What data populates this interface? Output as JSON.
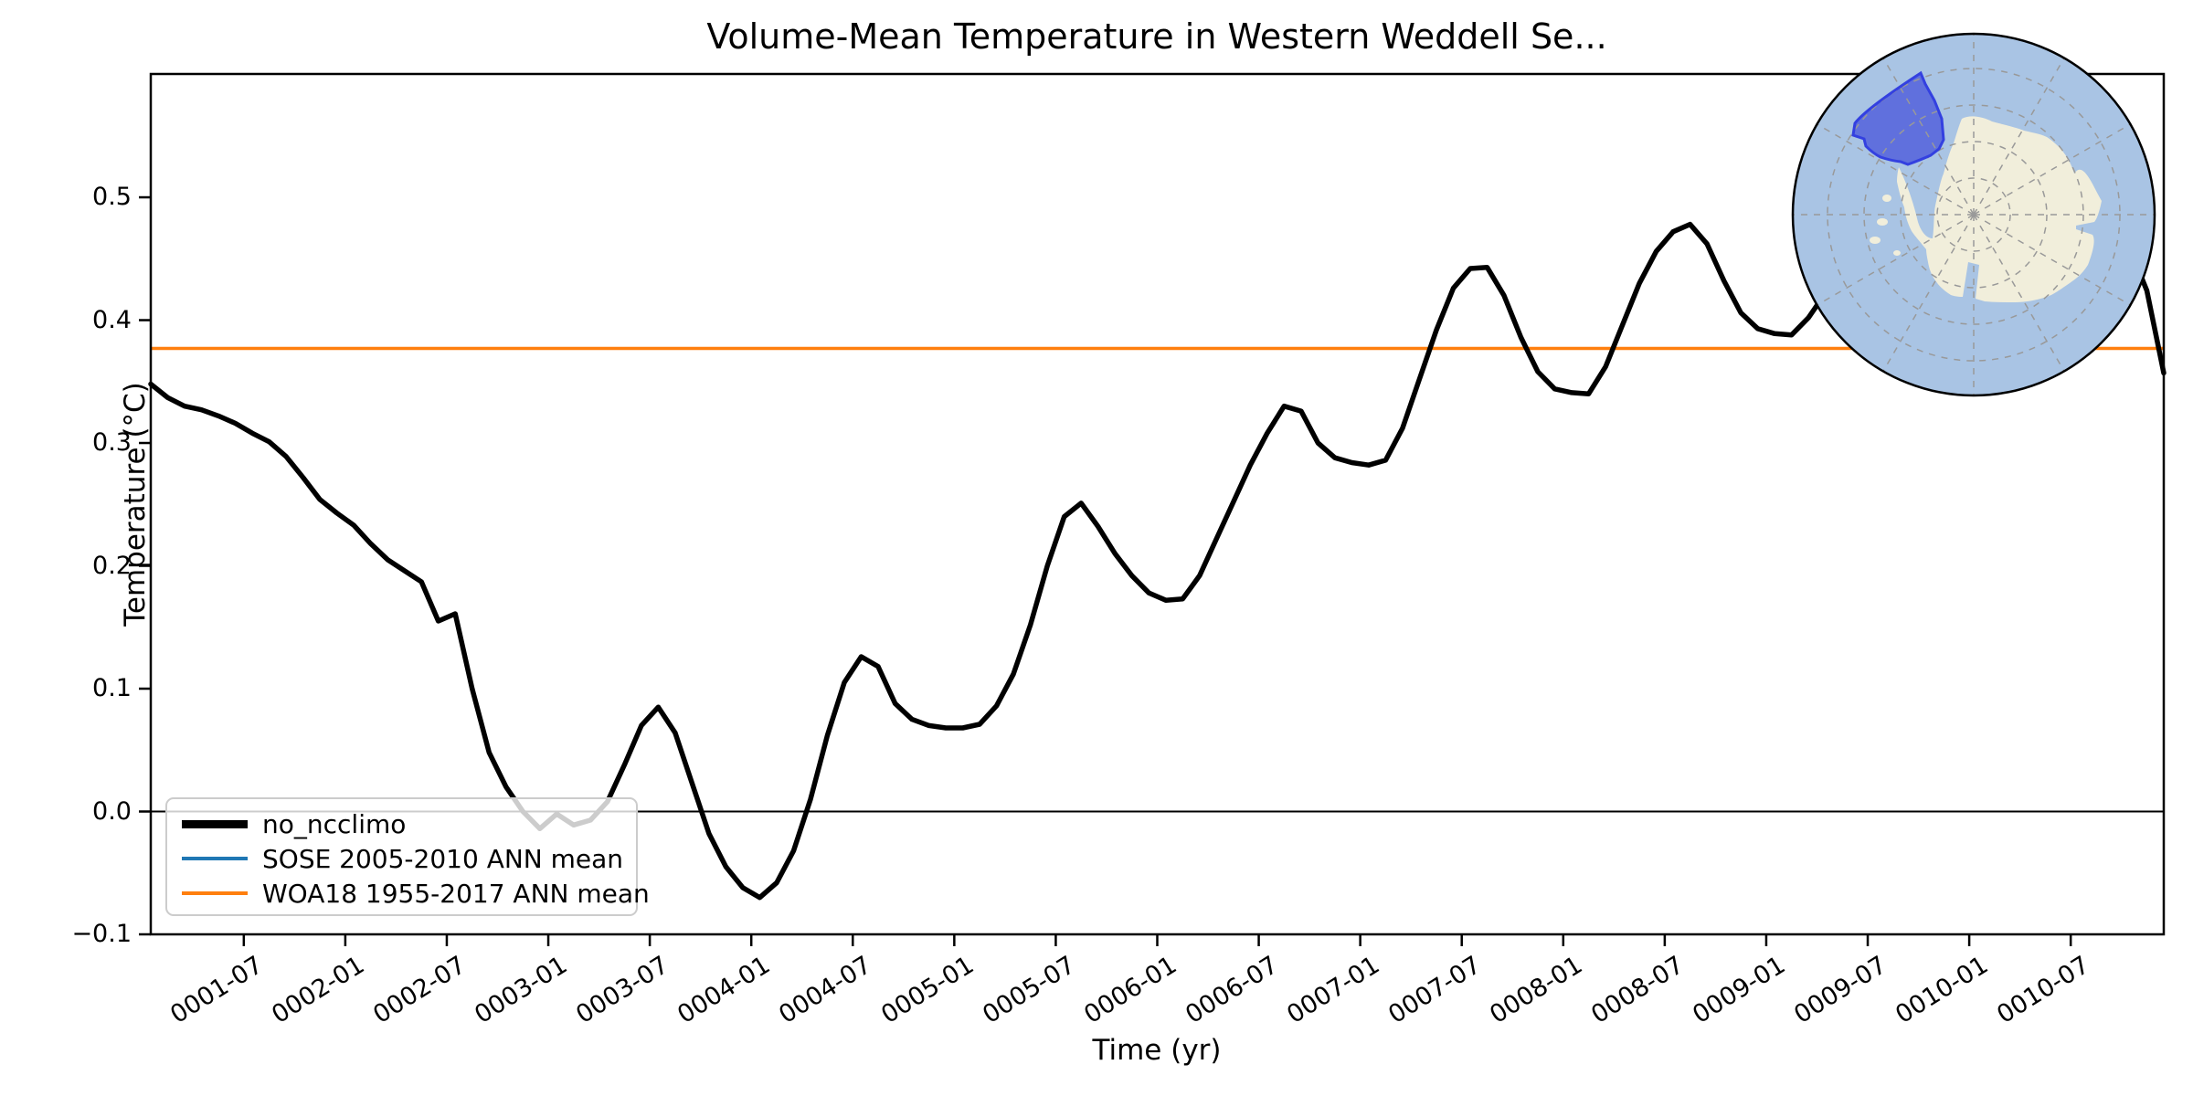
{
  "figure": {
    "background": "#ffffff",
    "title": "Volume-Mean Temperature in Western Weddell Se..."
  },
  "axes": {
    "xlabel": "Time (yr)",
    "ylabel": "Temperature (°C)",
    "ytick_values": [
      -0.1,
      0.0,
      0.1,
      0.2,
      0.3,
      0.4,
      0.5
    ],
    "xtick_labels": [
      "0001-07",
      "0002-01",
      "0002-07",
      "0003-01",
      "0003-07",
      "0004-01",
      "0004-07",
      "0005-01",
      "0005-07",
      "0006-01",
      "0006-07",
      "0007-01",
      "0007-07",
      "0008-01",
      "0008-07",
      "0009-01",
      "0009-07",
      "0010-01",
      "0010-07"
    ]
  },
  "legend": {
    "entries": [
      {
        "label": "no_ncclimo",
        "color": "#000000",
        "weight": 9
      },
      {
        "label": "SOSE 2005-2010 ANN mean",
        "color": "#1f77b4",
        "weight": 4
      },
      {
        "label": "WOA18 1955-2017 ANN mean",
        "color": "#ff7f0e",
        "weight": 4
      }
    ]
  },
  "chart_data": {
    "type": "line",
    "title": "Volume-Mean Temperature in Western Weddell Se...",
    "xlabel": "Time (yr)",
    "ylabel": "Temperature (°C)",
    "x_start": "0001-01",
    "x_end": "0010-12",
    "x_step": "1 month",
    "xlim_months": [
      0,
      119
    ],
    "ylim": [
      -0.1,
      0.6004
    ],
    "grid": false,
    "legend_position": "lower left",
    "first_xtick_month_index": 5.5,
    "xtick_month_step": 6,
    "series": [
      {
        "name": "no_ncclimo",
        "color": "#000000",
        "linewidth": 5.5,
        "values": [
          0.348,
          0.337,
          0.33,
          0.327,
          0.322,
          0.316,
          0.308,
          0.301,
          0.289,
          0.272,
          0.254,
          0.243,
          0.233,
          0.218,
          0.205,
          0.196,
          0.187,
          0.155,
          0.161,
          0.1,
          0.048,
          0.02,
          0.0,
          -0.014,
          -0.002,
          -0.011,
          -0.007,
          0.008,
          0.038,
          0.07,
          0.085,
          0.064,
          0.023,
          -0.018,
          -0.045,
          -0.062,
          -0.07,
          -0.058,
          -0.032,
          0.01,
          0.062,
          0.105,
          0.126,
          0.118,
          0.088,
          0.075,
          0.07,
          0.068,
          0.068,
          0.071,
          0.086,
          0.112,
          0.152,
          0.2,
          0.24,
          0.251,
          0.232,
          0.21,
          0.192,
          0.178,
          0.172,
          0.173,
          0.192,
          0.222,
          0.252,
          0.282,
          0.308,
          0.33,
          0.326,
          0.3,
          0.288,
          0.284,
          0.282,
          0.286,
          0.312,
          0.352,
          0.392,
          0.426,
          0.442,
          0.443,
          0.42,
          0.386,
          0.358,
          0.344,
          0.341,
          0.34,
          0.362,
          0.396,
          0.43,
          0.456,
          0.472,
          0.478,
          0.462,
          0.432,
          0.406,
          0.393,
          0.389,
          0.388,
          0.402,
          0.422,
          0.446,
          0.47,
          0.49,
          0.5,
          0.49,
          0.472,
          0.455,
          0.442,
          0.436,
          0.433,
          0.446,
          0.47,
          0.494,
          0.514,
          0.525,
          0.52,
          0.492,
          0.458,
          0.424,
          0.357
        ]
      }
    ],
    "ref_lines": [
      {
        "name": "zero-line",
        "value": 0.0,
        "color": "#000000",
        "linewidth": 2,
        "visible": true
      },
      {
        "name": "SOSE 2005-2010 ANN mean",
        "value": null,
        "color": "#1f77b4",
        "linewidth": 3.5,
        "visible": false
      },
      {
        "name": "WOA18 1955-2017 ANN mean",
        "value": 0.377,
        "color": "#ff7f0e",
        "linewidth": 3.5,
        "visible": true
      }
    ]
  },
  "inset_map": {
    "name": "western-weddell-sea-region-locator",
    "ocean_color": "#a9c4e4",
    "land_color": "#f1eedb",
    "region_fill": "#4d5bdb",
    "region_border": "#3340e0",
    "graticule_color": "#999999",
    "outline_color": "#000000"
  }
}
